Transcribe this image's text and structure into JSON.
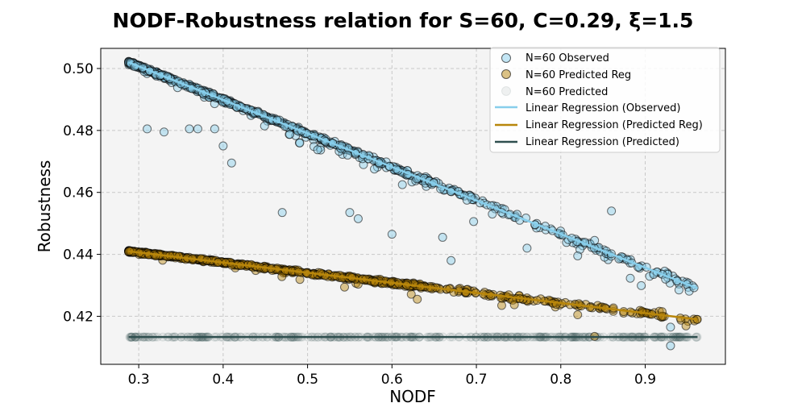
{
  "chart_data": {
    "type": "scatter",
    "title": "NODF-Robustness relation for S=60, C=0.29, ξ=1.5",
    "xlabel": "NODF",
    "ylabel": "Robustness",
    "xlim": [
      0.255,
      0.995
    ],
    "ylim": [
      0.4045,
      0.5065
    ],
    "xticks": [
      "0.3",
      "0.4",
      "0.5",
      "0.6",
      "0.7",
      "0.8",
      "0.9"
    ],
    "yticks": [
      "0.42",
      "0.44",
      "0.46",
      "0.48",
      "0.50"
    ],
    "grid": true,
    "legend_position": "top-right",
    "series": [
      {
        "name": "N=60 Observed",
        "kind": "scatter",
        "color": "#87ceeb",
        "trend_from": [
          0.288,
          0.502
        ],
        "trend_to": [
          0.962,
          0.429
        ],
        "examples": [
          [
            0.31,
            0.4805
          ],
          [
            0.33,
            0.4795
          ],
          [
            0.36,
            0.4805
          ],
          [
            0.37,
            0.4805
          ],
          [
            0.39,
            0.4805
          ],
          [
            0.4,
            0.475
          ],
          [
            0.41,
            0.4695
          ],
          [
            0.47,
            0.4535
          ],
          [
            0.55,
            0.4535
          ],
          [
            0.56,
            0.4515
          ],
          [
            0.6,
            0.4465
          ],
          [
            0.66,
            0.4455
          ],
          [
            0.67,
            0.438
          ],
          [
            0.76,
            0.442
          ],
          [
            0.82,
            0.4395
          ],
          [
            0.84,
            0.4445
          ],
          [
            0.86,
            0.454
          ],
          [
            0.91,
            0.4335
          ],
          [
            0.93,
            0.4165
          ],
          [
            0.93,
            0.4105
          ],
          [
            0.94,
            0.4285
          ]
        ]
      },
      {
        "name": "N=60 Predicted Reg",
        "kind": "scatter",
        "color": "#b8860b",
        "trend_from": [
          0.288,
          0.441
        ],
        "trend_to": [
          0.962,
          0.419
        ],
        "examples": [
          [
            0.32,
            0.4395
          ],
          [
            0.41,
            0.4365
          ],
          [
            0.63,
            0.4255
          ],
          [
            0.73,
            0.4235
          ],
          [
            0.82,
            0.4205
          ],
          [
            0.84,
            0.4135
          ],
          [
            0.92,
            0.4215
          ]
        ]
      },
      {
        "name": "N=60 Predicted",
        "kind": "scatter",
        "color": "#2f4f4f",
        "trend_from": [
          0.288,
          0.4133
        ],
        "trend_to": [
          0.962,
          0.4133
        ]
      },
      {
        "name": "Linear Regression (Observed)",
        "kind": "line",
        "color": "#87ceeb",
        "x": [
          0.288,
          0.962
        ],
        "y": [
          0.502,
          0.429
        ]
      },
      {
        "name": "Linear Regression (Predicted Reg)",
        "kind": "line",
        "color": "#b8860b",
        "x": [
          0.288,
          0.962
        ],
        "y": [
          0.441,
          0.419
        ]
      },
      {
        "name": "Linear Regression (Predicted)",
        "kind": "line",
        "color": "#2f4f4f",
        "x": [
          0.288,
          0.962
        ],
        "y": [
          0.4133,
          0.4133
        ]
      }
    ]
  }
}
